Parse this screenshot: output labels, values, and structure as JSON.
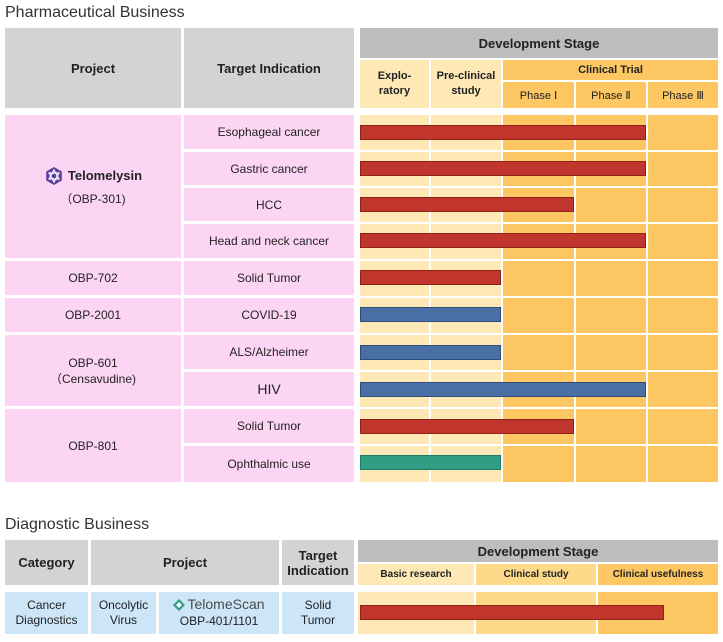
{
  "pharma": {
    "title": "Pharmaceutical Business",
    "header": {
      "project": "Project",
      "indication": "Target Indication",
      "stage": "Development Stage",
      "exploratory": "Explo-\nratory",
      "preclinical": "Pre-clinical\nstudy",
      "clinical_trial": "Clinical Trial",
      "phase1": "Phase Ⅰ",
      "phase2": "Phase Ⅱ",
      "phase3": "Phase Ⅲ"
    },
    "projects": [
      {
        "logo_text": "Telomelysin",
        "code": "（OBP-301)"
      },
      {
        "name": "OBP-702"
      },
      {
        "name": "OBP-2001"
      },
      {
        "name": "OBP-601",
        "sub": "（Censavudine)"
      },
      {
        "name": "OBP-801"
      }
    ],
    "rows": [
      {
        "indication": "Esophageal cancer",
        "stage_end": 4,
        "color": "red"
      },
      {
        "indication": "Gastric cancer",
        "stage_end": 4,
        "color": "red"
      },
      {
        "indication": "HCC",
        "stage_end": 3,
        "color": "red"
      },
      {
        "indication": "Head and neck cancer",
        "stage_end": 4,
        "color": "red"
      },
      {
        "indication": "Solid Tumor",
        "stage_end": 2,
        "color": "red"
      },
      {
        "indication": "COVID-19",
        "stage_end": 2,
        "color": "blue"
      },
      {
        "indication": "ALS/Alzheimer",
        "stage_end": 2,
        "color": "blue"
      },
      {
        "indication": "HIV",
        "stage_end": 4,
        "color": "blue"
      },
      {
        "indication": "Solid Tumor",
        "stage_end": 3,
        "color": "red"
      },
      {
        "indication": "Ophthalmic use",
        "stage_end": 2,
        "color": "green"
      }
    ]
  },
  "diag": {
    "title": "Diagnostic Business",
    "header": {
      "category": "Category",
      "project": "Project",
      "target": "Target\nIndication",
      "stage": "Development Stage",
      "basic": "Basic research",
      "clinical_study": "Clinical study",
      "usefulness": "Clinical usefulness"
    },
    "row": {
      "category": "Cancer\nDiagnostics",
      "type": "Oncolytic\nVirus",
      "logo_text": "TelomeScan",
      "code": "OBP-401/1101",
      "indication": "Solid\nTumor",
      "stage_progress": 0.85
    }
  },
  "colors": {
    "red": "#c0362c",
    "blue": "#4a6fa5",
    "green": "#2f9e84",
    "pink": "#fcd5f4",
    "light_orange": "#fde8b6",
    "orange": "#fdc763"
  }
}
